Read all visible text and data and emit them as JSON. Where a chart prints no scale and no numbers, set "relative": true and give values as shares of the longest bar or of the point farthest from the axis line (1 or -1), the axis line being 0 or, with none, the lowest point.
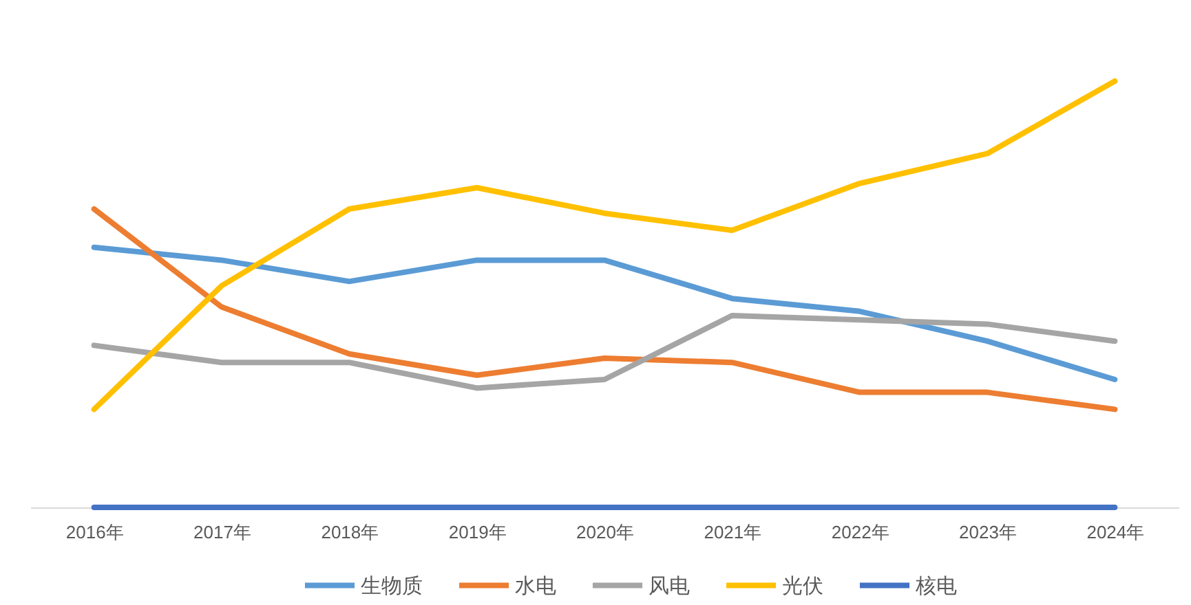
{
  "chart_data": {
    "type": "line",
    "relative": true,
    "categories": [
      "2016年",
      "2017年",
      "2018年",
      "2019年",
      "2020年",
      "2021年",
      "2022年",
      "2023年",
      "2024年"
    ],
    "series": [
      {
        "name": "生物质",
        "color": "#5b9bd5",
        "values": [
          0.61,
          0.58,
          0.53,
          0.58,
          0.58,
          0.49,
          0.46,
          0.39,
          0.3
        ]
      },
      {
        "name": "水电",
        "color": "#ed7d31",
        "values": [
          0.7,
          0.47,
          0.36,
          0.31,
          0.35,
          0.34,
          0.27,
          0.27,
          0.23
        ]
      },
      {
        "name": "风电",
        "color": "#a5a5a5",
        "values": [
          0.38,
          0.34,
          0.34,
          0.28,
          0.3,
          0.45,
          0.44,
          0.43,
          0.39
        ]
      },
      {
        "name": "光伏",
        "color": "#ffc000",
        "values": [
          0.23,
          0.52,
          0.7,
          0.75,
          0.69,
          0.65,
          0.76,
          0.83,
          1
        ]
      },
      {
        "name": "核电",
        "color": "#4472c4",
        "values": [
          0,
          0,
          0,
          0,
          0,
          0,
          0,
          0,
          0
        ]
      }
    ],
    "legend": "bottom",
    "line_style": "solid"
  }
}
